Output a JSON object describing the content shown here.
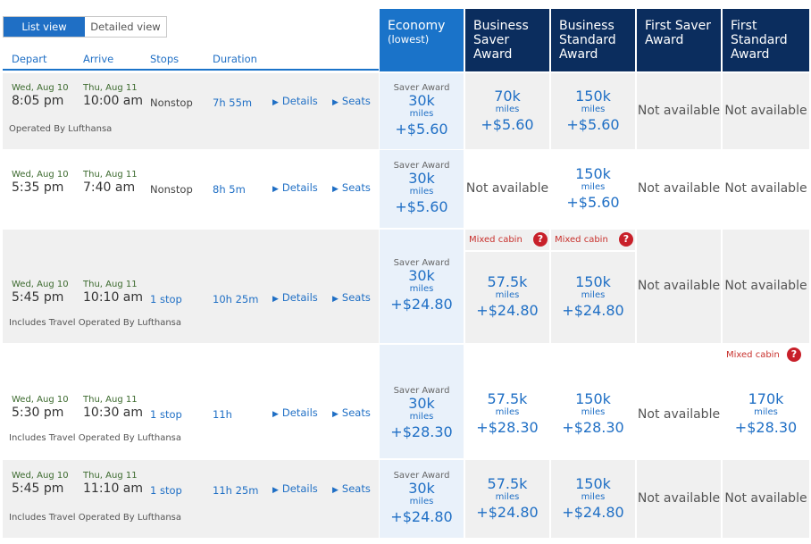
{
  "view_toggle": {
    "list": "List view",
    "detailed": "Detailed view"
  },
  "columns": {
    "depart": "Depart",
    "arrive": "Arrive",
    "stops": "Stops",
    "duration": "Duration"
  },
  "cabins": [
    {
      "name": "Economy",
      "sub": "(lowest)"
    },
    {
      "name": "Business Saver Award"
    },
    {
      "name": "Business Standard Award"
    },
    {
      "name": "First Saver Award"
    },
    {
      "name": "First Standard Award"
    }
  ],
  "labels": {
    "details": "Details",
    "seats": "Seats",
    "saver_award": "Saver Award",
    "miles_unit": "miles",
    "not_available": "Not available",
    "mixed_cabin": "Mixed cabin",
    "help": "?"
  },
  "flights": [
    {
      "depart_date": "Wed, Aug 10",
      "arrive_date": "Thu, Aug 11",
      "depart_time": "8:05 pm",
      "arrive_time": "10:00 am",
      "stops": "Nonstop",
      "duration": "7h 55m",
      "operated_by": "Operated By Lufthansa",
      "fares": [
        {
          "miles": "30k",
          "price": "+$5.60"
        },
        {
          "miles": "70k",
          "price": "+$5.60"
        },
        {
          "miles": "150k",
          "price": "+$5.60"
        },
        null,
        null
      ]
    },
    {
      "depart_date": "Wed, Aug 10",
      "arrive_date": "Thu, Aug 11",
      "depart_time": "5:35 pm",
      "arrive_time": "7:40 am",
      "stops": "Nonstop",
      "duration": "8h 5m",
      "operated_by": "",
      "fares": [
        {
          "miles": "30k",
          "price": "+$5.60"
        },
        null,
        {
          "miles": "150k",
          "price": "+$5.60"
        },
        null,
        null
      ]
    },
    {
      "depart_date": "Wed, Aug 10",
      "arrive_date": "Thu, Aug 11",
      "depart_time": "5:45 pm",
      "arrive_time": "10:10 am",
      "stops": "1 stop",
      "duration": "10h 25m",
      "operated_by": "Includes Travel Operated By Lufthansa",
      "fares": [
        {
          "miles": "30k",
          "price": "+$24.80"
        },
        {
          "miles": "57.5k",
          "price": "+$24.80",
          "mixed": true
        },
        {
          "miles": "150k",
          "price": "+$24.80",
          "mixed": true
        },
        null,
        null
      ]
    },
    {
      "depart_date": "Wed, Aug 10",
      "arrive_date": "Thu, Aug 11",
      "depart_time": "5:30 pm",
      "arrive_time": "10:30 am",
      "stops": "1 stop",
      "duration": "11h",
      "operated_by": "Includes Travel Operated By Lufthansa",
      "fares": [
        {
          "miles": "30k",
          "price": "+$28.30"
        },
        {
          "miles": "57.5k",
          "price": "+$28.30"
        },
        {
          "miles": "150k",
          "price": "+$28.30"
        },
        null,
        {
          "miles": "170k",
          "price": "+$28.30",
          "mixed": true
        }
      ]
    },
    {
      "depart_date": "Wed, Aug 10",
      "arrive_date": "Thu, Aug 11",
      "depart_time": "5:45 pm",
      "arrive_time": "11:10 am",
      "stops": "1 stop",
      "duration": "11h 25m",
      "operated_by": "Includes Travel Operated By Lufthansa",
      "fares": [
        {
          "miles": "30k",
          "price": "+$24.80"
        },
        {
          "miles": "57.5k",
          "price": "+$24.80"
        },
        {
          "miles": "150k",
          "price": "+$24.80"
        },
        null,
        null
      ]
    }
  ]
}
